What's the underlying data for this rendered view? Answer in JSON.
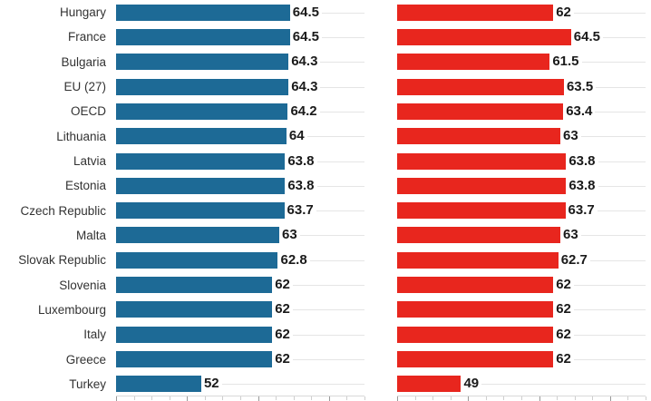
{
  "chart": {
    "kind": "paired horizontal bar chart",
    "left_series_color": "#1d6a96",
    "right_series_color": "#e8261e",
    "gridline_color": "#e5e5e5",
    "axis_line_color": "#d9d9d9",
    "label_color": "#333333",
    "value_label_color": "#1a1a1a"
  },
  "chart_data": {
    "type": "bar",
    "orientation": "horizontal",
    "categories": [
      "Hungary",
      "France",
      "Bulgaria",
      "EU (27)",
      "OECD",
      "Lithuania",
      "Latvia",
      "Estonia",
      "Czech Republic",
      "Malta",
      "Slovak Republic",
      "Slovenia",
      "Luxembourg",
      "Italy",
      "Greece",
      "Turkey"
    ],
    "series": [
      {
        "name": "left",
        "color": "#1d6a96",
        "values": [
          64.5,
          64.5,
          64.3,
          64.3,
          64.2,
          64,
          63.8,
          63.8,
          63.7,
          63,
          62.8,
          62,
          62,
          62,
          62,
          52
        ]
      },
      {
        "name": "right",
        "color": "#e8261e",
        "values": [
          62,
          64.5,
          61.5,
          63.5,
          63.4,
          63,
          63.8,
          63.8,
          63.7,
          63,
          62.7,
          62,
          62,
          62,
          62,
          49
        ]
      }
    ],
    "title": "",
    "xlabel": "",
    "ylabel": "",
    "xlim": [
      40,
      75
    ],
    "x_ticks": {
      "start": 40,
      "end": 75,
      "minor_step": 2.5,
      "major_step": 10,
      "tick_labels_visible": false
    },
    "grid": "horizontal row gridlines",
    "legend": "none",
    "value_labels": true
  }
}
